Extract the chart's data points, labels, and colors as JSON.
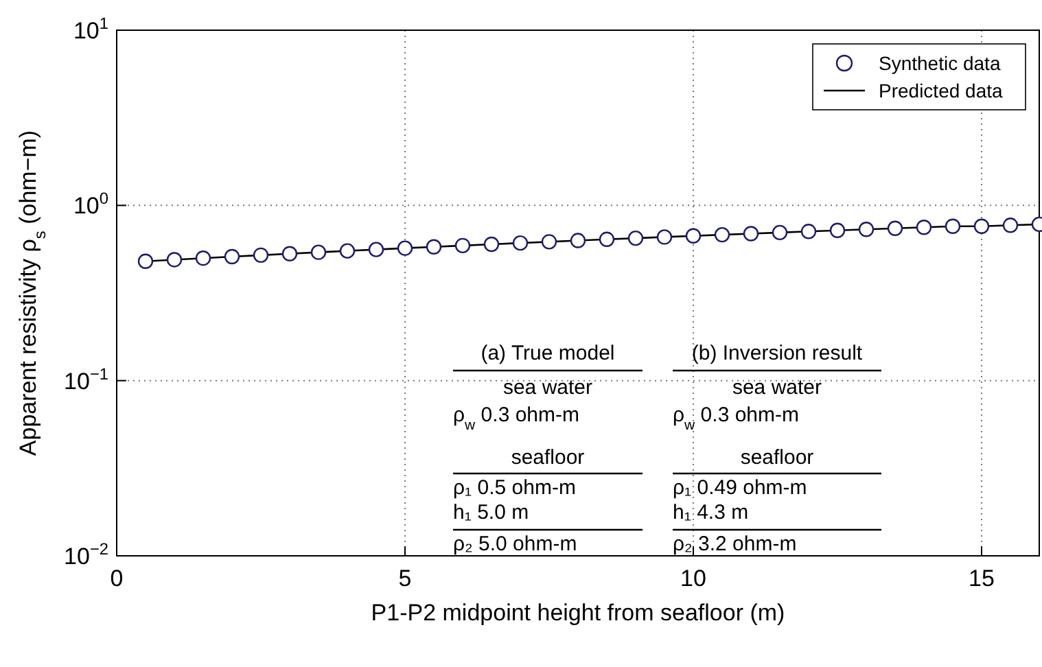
{
  "chart_data": {
    "type": "scatter",
    "xlabel": "P1-P2 midpoint height from seafloor (m)",
    "ylabel": "Apparent resistivity ρ$_{s}$ (ohm−m)",
    "x": [
      0.5,
      1,
      1.5,
      2,
      2.5,
      3,
      3.5,
      4,
      4.5,
      5,
      5.5,
      6,
      6.5,
      7,
      7.5,
      8,
      8.5,
      9,
      9.5,
      10,
      10.5,
      11,
      11.5,
      12,
      12.5,
      13,
      13.5,
      14,
      14.5,
      15,
      15.5,
      16
    ],
    "series": [
      {
        "name": "Synthetic data",
        "color": "#1c1c6b",
        "marker": "circle",
        "values": [
          0.48,
          0.49,
          0.5,
          0.51,
          0.52,
          0.53,
          0.54,
          0.55,
          0.56,
          0.57,
          0.58,
          0.59,
          0.6,
          0.61,
          0.62,
          0.63,
          0.64,
          0.65,
          0.66,
          0.67,
          0.68,
          0.69,
          0.7,
          0.71,
          0.72,
          0.73,
          0.74,
          0.75,
          0.76,
          0.76,
          0.77,
          0.78
        ]
      },
      {
        "name": "Predicted data",
        "type": "line",
        "color": "#000000",
        "line_style": "solid",
        "values": [
          0.48,
          0.49,
          0.5,
          0.51,
          0.52,
          0.53,
          0.54,
          0.55,
          0.56,
          0.57,
          0.58,
          0.59,
          0.6,
          0.61,
          0.62,
          0.63,
          0.64,
          0.65,
          0.66,
          0.67,
          0.68,
          0.69,
          0.7,
          0.71,
          0.72,
          0.73,
          0.74,
          0.75,
          0.76,
          0.76,
          0.77,
          0.78
        ]
      }
    ],
    "xlim": [
      0,
      16
    ],
    "xticks": [
      0,
      5,
      10,
      15
    ],
    "ylim": [
      0.01,
      10
    ],
    "log": "y",
    "yticks": [
      {
        "value": 0.01,
        "label": "10$^{−2}$"
      },
      {
        "value": 0.1,
        "label": "10$^{−1}$"
      },
      {
        "value": 1,
        "label": "10$^{0}$"
      },
      {
        "value": 10,
        "label": "10$^{1}$"
      }
    ],
    "grid": true,
    "legend": "top right",
    "annotations": [
      "(a) True model",
      "sea water",
      "ρ$_{w}$ 0.3 ohm-m",
      "seafloor",
      "ρ₁ 0.5 ohm-m",
      "h₁ 5.0 m",
      "ρ₂ 5.0 ohm-m",
      "(b) Inversion result",
      "sea water",
      "ρ$_{w}$ 0.3 ohm-m",
      "seafloor",
      "ρ₁ 0.49 ohm-m",
      "h₁ 4.3 m",
      "ρ₂ 3.2 ohm-m"
    ]
  }
}
